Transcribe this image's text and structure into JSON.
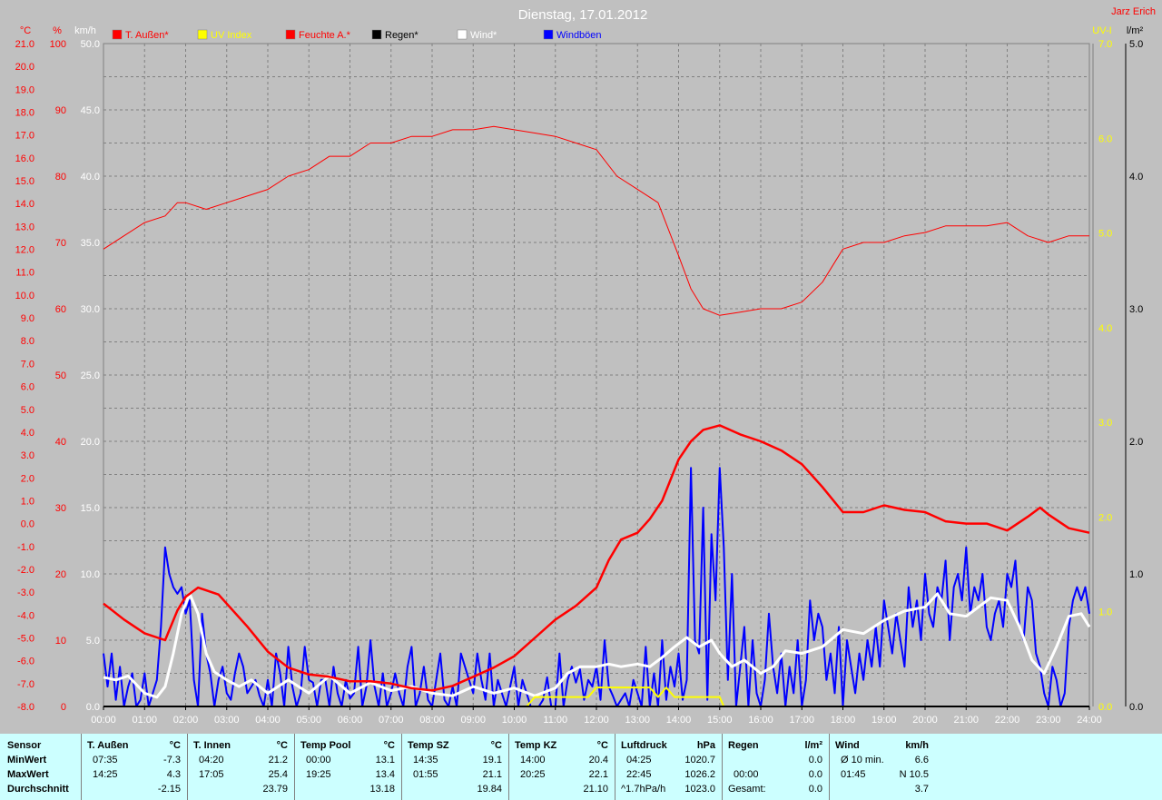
{
  "title": "Dienstag, 17.01.2012",
  "author": "Jarz Erich",
  "colors": {
    "temp": "#ff0000",
    "uv": "#ffff00",
    "humidity": "#ff0000",
    "rain": "#000000",
    "wind": "#ffffff",
    "gust": "#0000ff",
    "plot_bg": "#c0c0c0",
    "grid": "#808080",
    "table_bg": "#ccffff"
  },
  "legend": [
    {
      "label": "T. Außen*",
      "color": "#ff0000"
    },
    {
      "label": "UV Index",
      "color": "#ffff00"
    },
    {
      "label": "Feuchte A.*",
      "color": "#ff0000"
    },
    {
      "label": "Regen*",
      "color": "#000000"
    },
    {
      "label": "Wind*",
      "color": "#ffffff"
    },
    {
      "label": "Windböen",
      "color": "#0000ff"
    }
  ],
  "axis_units": {
    "temp": "°C",
    "humidity": "%",
    "wind": "km/h",
    "uv": "UV-I",
    "rain": "l/m²"
  },
  "chart_data": {
    "type": "line",
    "title": "Dienstag, 17.01.2012",
    "x_ticks": [
      "00:00",
      "01:00",
      "02:00",
      "03:00",
      "04:00",
      "05:00",
      "06:00",
      "07:00",
      "08:00",
      "09:00",
      "10:00",
      "11:00",
      "12:00",
      "13:00",
      "14:00",
      "15:00",
      "16:00",
      "17:00",
      "18:00",
      "19:00",
      "20:00",
      "21:00",
      "22:00",
      "23:00",
      "24:00"
    ],
    "x_range": [
      0,
      24
    ],
    "axes": {
      "temp": {
        "range": [
          -8,
          21
        ],
        "ticks": [
          "-8.0",
          "-7.0",
          "-6.0",
          "-5.0",
          "-4.0",
          "-3.0",
          "-2.0",
          "-1.0",
          "0.0",
          "1.0",
          "2.0",
          "3.0",
          "4.0",
          "5.0",
          "6.0",
          "7.0",
          "8.0",
          "9.0",
          "10.0",
          "11.0",
          "12.0",
          "13.0",
          "14.0",
          "15.0",
          "16.0",
          "17.0",
          "18.0",
          "19.0",
          "20.0",
          "21.0"
        ]
      },
      "humidity": {
        "range": [
          0,
          100
        ],
        "ticks": [
          "0",
          "10",
          "20",
          "30",
          "40",
          "50",
          "60",
          "70",
          "80",
          "90",
          "100"
        ]
      },
      "wind": {
        "range": [
          0,
          50
        ],
        "ticks": [
          "0.0",
          "5.0",
          "10.0",
          "15.0",
          "20.0",
          "25.0",
          "30.0",
          "35.0",
          "40.0",
          "45.0",
          "50.0"
        ]
      },
      "uv": {
        "range": [
          0,
          7
        ],
        "ticks": [
          "0.0",
          "1.0",
          "2.0",
          "3.0",
          "4.0",
          "5.0",
          "6.0",
          "7.0"
        ]
      },
      "rain": {
        "range": [
          0,
          5
        ],
        "ticks": [
          "0.0",
          "1.0",
          "2.0",
          "3.0",
          "4.0",
          "5.0"
        ]
      }
    },
    "series": [
      {
        "name": "T. Außen*",
        "axis": "temp",
        "x": [
          0,
          0.5,
          1,
          1.5,
          1.8,
          2,
          2.3,
          2.8,
          3.5,
          4,
          4.5,
          5,
          5.5,
          6,
          6.5,
          7,
          7.5,
          8,
          8.5,
          9,
          9.5,
          10,
          10.5,
          11,
          11.5,
          12,
          12.3,
          12.6,
          13,
          13.3,
          13.6,
          14,
          14.3,
          14.6,
          15,
          15.5,
          16,
          16.5,
          17,
          17.5,
          18,
          18.5,
          19,
          19.5,
          20,
          20.5,
          21,
          21.5,
          22,
          22.5,
          22.8,
          23,
          23.5,
          24
        ],
        "y": [
          -3.5,
          -4.2,
          -4.8,
          -5.1,
          -3.8,
          -3.2,
          -2.8,
          -3.1,
          -4.5,
          -5.6,
          -6.3,
          -6.6,
          -6.7,
          -6.9,
          -6.9,
          -7.0,
          -7.2,
          -7.3,
          -7.1,
          -6.7,
          -6.3,
          -5.8,
          -5.0,
          -4.2,
          -3.6,
          -2.8,
          -1.6,
          -0.7,
          -0.4,
          0.2,
          1.0,
          2.8,
          3.6,
          4.1,
          4.3,
          3.9,
          3.6,
          3.2,
          2.6,
          1.6,
          0.5,
          0.5,
          0.8,
          0.6,
          0.5,
          0.1,
          0.0,
          0.0,
          -0.3,
          0.3,
          0.7,
          0.4,
          -0.2,
          -0.4
        ]
      },
      {
        "name": "Feuchte A.*",
        "axis": "humidity",
        "x": [
          0,
          0.5,
          1,
          1.5,
          1.8,
          2,
          2.5,
          3,
          3.5,
          4,
          4.5,
          5,
          5.5,
          6,
          6.5,
          7,
          7.5,
          8,
          8.5,
          9,
          9.5,
          10,
          10.5,
          11,
          11.5,
          12,
          12.5,
          13,
          13.5,
          14,
          14.3,
          14.6,
          15,
          15.5,
          16,
          16.5,
          17,
          17.5,
          18,
          18.5,
          19,
          19.5,
          20,
          20.5,
          21,
          21.5,
          22,
          22.5,
          23,
          23.5,
          24
        ],
        "y": [
          69,
          71,
          73,
          74,
          76,
          76,
          75,
          76,
          77,
          78,
          80,
          81,
          83,
          83,
          85,
          85,
          86,
          86,
          87,
          87,
          87.5,
          87,
          86.5,
          86,
          85,
          84,
          80,
          78,
          76,
          68,
          63,
          60,
          59,
          59.5,
          60,
          60,
          61,
          64,
          69,
          70,
          70,
          71,
          71.5,
          72.5,
          72.5,
          72.5,
          73,
          71,
          70,
          71,
          71
        ]
      },
      {
        "name": "Wind*",
        "axis": "wind",
        "x": [
          0,
          0.3,
          0.6,
          1,
          1.3,
          1.5,
          1.7,
          1.9,
          2.1,
          2.3,
          2.5,
          2.7,
          3,
          3.3,
          3.6,
          4,
          4.5,
          5,
          5.5,
          6,
          6.5,
          7,
          7.5,
          8,
          8.5,
          9,
          9.5,
          10,
          10.5,
          11,
          11.3,
          11.6,
          12,
          12.3,
          12.6,
          13,
          13.3,
          13.6,
          13.9,
          14.2,
          14.5,
          14.8,
          15,
          15.3,
          15.6,
          16,
          16.3,
          16.6,
          17,
          17.5,
          18,
          18.5,
          19,
          19.5,
          20,
          20.3,
          20.6,
          21,
          21.3,
          21.6,
          22,
          22.3,
          22.6,
          22.9,
          23.2,
          23.5,
          23.8,
          24
        ],
        "y": [
          2.2,
          2.0,
          2.3,
          1.0,
          0.7,
          1.5,
          4.0,
          7.0,
          8.5,
          7.0,
          4.0,
          2.6,
          2.0,
          1.5,
          2.0,
          1.0,
          2.0,
          1.0,
          2.3,
          1.0,
          1.8,
          1.2,
          1.5,
          1.0,
          0.8,
          1.5,
          1.0,
          1.4,
          0.8,
          1.4,
          2.5,
          3.0,
          3.0,
          3.2,
          3.0,
          3.2,
          3.0,
          3.7,
          4.5,
          5.2,
          4.5,
          5.0,
          4.0,
          3.0,
          3.5,
          2.5,
          3.0,
          4.2,
          4.0,
          4.5,
          5.8,
          5.5,
          6.5,
          7.2,
          7.5,
          8.5,
          7.0,
          6.8,
          7.5,
          8.2,
          8.0,
          6.0,
          3.5,
          2.5,
          4.5,
          6.8,
          7.0,
          6.0
        ]
      },
      {
        "name": "Windböen",
        "axis": "wind",
        "x": [
          0,
          0.1,
          0.2,
          0.3,
          0.4,
          0.5,
          0.6,
          0.7,
          0.8,
          0.9,
          1.0,
          1.1,
          1.2,
          1.3,
          1.4,
          1.5,
          1.6,
          1.7,
          1.8,
          1.9,
          2.0,
          2.1,
          2.2,
          2.3,
          2.4,
          2.5,
          2.6,
          2.7,
          2.8,
          2.9,
          3.0,
          3.1,
          3.2,
          3.3,
          3.4,
          3.5,
          3.6,
          3.7,
          3.8,
          3.9,
          4.0,
          4.1,
          4.2,
          4.3,
          4.4,
          4.5,
          4.6,
          4.7,
          4.8,
          4.9,
          5.0,
          5.1,
          5.2,
          5.3,
          5.4,
          5.5,
          5.6,
          5.7,
          5.8,
          5.9,
          6.0,
          6.1,
          6.2,
          6.3,
          6.4,
          6.5,
          6.6,
          6.7,
          6.8,
          6.9,
          7.0,
          7.1,
          7.2,
          7.3,
          7.4,
          7.5,
          7.6,
          7.7,
          7.8,
          7.9,
          8.0,
          8.1,
          8.2,
          8.3,
          8.4,
          8.5,
          8.6,
          8.7,
          8.8,
          8.9,
          9.0,
          9.1,
          9.2,
          9.3,
          9.4,
          9.5,
          9.6,
          9.7,
          9.8,
          9.9,
          10.0,
          10.1,
          10.2,
          10.3,
          10.4,
          10.5,
          10.6,
          10.7,
          10.8,
          10.9,
          11.0,
          11.1,
          11.2,
          11.3,
          11.4,
          11.5,
          11.6,
          11.7,
          11.8,
          11.9,
          12.0,
          12.1,
          12.2,
          12.3,
          12.4,
          12.5,
          12.6,
          12.7,
          12.8,
          12.9,
          13.0,
          13.1,
          13.2,
          13.3,
          13.4,
          13.5,
          13.6,
          13.7,
          13.8,
          13.9,
          14.0,
          14.1,
          14.2,
          14.3,
          14.4,
          14.5,
          14.6,
          14.7,
          14.8,
          14.9,
          15.0,
          15.1,
          15.2,
          15.3,
          15.4,
          15.5,
          15.6,
          15.7,
          15.8,
          15.9,
          16.0,
          16.1,
          16.2,
          16.3,
          16.4,
          16.5,
          16.6,
          16.7,
          16.8,
          16.9,
          17.0,
          17.1,
          17.2,
          17.3,
          17.4,
          17.5,
          17.6,
          17.7,
          17.8,
          17.9,
          18.0,
          18.1,
          18.2,
          18.3,
          18.4,
          18.5,
          18.6,
          18.7,
          18.8,
          18.9,
          19.0,
          19.1,
          19.2,
          19.3,
          19.4,
          19.5,
          19.6,
          19.7,
          19.8,
          19.9,
          20.0,
          20.1,
          20.2,
          20.3,
          20.4,
          20.5,
          20.6,
          20.7,
          20.8,
          20.9,
          21.0,
          21.1,
          21.2,
          21.3,
          21.4,
          21.5,
          21.6,
          21.7,
          21.8,
          21.9,
          22.0,
          22.1,
          22.2,
          22.3,
          22.4,
          22.5,
          22.6,
          22.7,
          22.8,
          22.9,
          23.0,
          23.1,
          23.2,
          23.3,
          23.4,
          23.5,
          23.6,
          23.7,
          23.8,
          23.9,
          24.0
        ],
        "y": [
          4,
          1.5,
          4,
          0.5,
          3,
          0,
          1.5,
          2.5,
          0,
          0.5,
          2.5,
          0,
          1,
          2,
          6,
          12,
          10,
          9,
          8.5,
          9,
          7,
          8,
          2,
          0,
          7,
          4,
          2.5,
          0,
          2,
          3,
          1,
          0.5,
          2.5,
          4,
          3,
          1,
          1.5,
          2,
          0.8,
          0,
          2,
          0,
          4,
          2.5,
          0,
          4.5,
          1.5,
          0,
          1,
          4.5,
          2,
          1.8,
          0,
          2,
          2,
          0,
          3,
          1,
          0,
          2,
          0.6,
          1,
          4.5,
          0,
          1.5,
          5,
          1.5,
          0,
          2.5,
          0,
          1,
          2.5,
          1,
          0,
          3,
          4.5,
          0,
          1,
          3,
          0.5,
          0,
          2,
          4,
          0.5,
          0,
          1.5,
          0,
          4,
          3,
          2,
          1,
          4,
          2,
          0.5,
          4,
          0,
          2,
          1,
          0,
          1.5,
          3,
          0,
          2,
          1,
          0,
          0,
          0,
          0.5,
          2.2,
          0,
          0,
          4,
          0,
          2,
          3,
          1.8,
          2.8,
          0.5,
          2,
          1.5,
          3,
          0.5,
          5,
          1.5,
          0.8,
          0,
          0.5,
          1,
          0,
          2,
          1,
          0,
          4.5,
          0,
          2.5,
          0,
          5,
          0.5,
          3,
          1.5,
          4,
          0.5,
          2,
          18,
          5,
          4,
          15,
          0.5,
          13,
          8,
          18,
          12,
          2,
          10,
          0,
          3,
          6,
          0,
          5,
          1,
          0,
          2,
          7,
          3,
          1,
          4,
          0,
          3,
          1,
          5,
          0,
          2,
          8,
          5,
          7,
          6,
          2,
          4,
          1,
          6,
          0,
          5,
          3,
          1,
          4,
          2,
          5,
          3,
          6,
          3,
          8,
          6,
          4,
          7,
          5,
          3,
          9,
          6,
          8,
          5,
          10,
          7,
          6,
          9,
          8,
          11,
          5,
          9,
          10,
          8,
          12,
          7,
          9,
          8,
          10,
          6,
          5,
          7,
          8,
          6,
          10,
          9,
          11,
          6,
          5,
          9,
          8,
          4,
          3,
          1,
          0,
          3,
          2,
          0,
          1,
          6,
          8,
          9,
          8,
          9,
          7
        ]
      },
      {
        "name": "UV Index",
        "axis": "uv",
        "x": [
          0,
          10.3,
          10.5,
          11,
          11.5,
          11.8,
          12,
          12.2,
          12.5,
          13,
          13.3,
          13.5,
          13.7,
          13.9,
          14.1,
          14.3,
          14.5,
          14.8,
          15,
          15.1,
          24
        ],
        "y": [
          0,
          0,
          0.1,
          0.1,
          0.1,
          0.1,
          0.2,
          0.2,
          0.2,
          0.2,
          0.2,
          0.1,
          0.2,
          0.1,
          0.1,
          0.1,
          0.1,
          0.1,
          0.1,
          0,
          0
        ]
      },
      {
        "name": "Regen*",
        "axis": "rain",
        "x": [
          0,
          24
        ],
        "y": [
          0,
          0
        ]
      }
    ]
  },
  "stats": {
    "sensor": {
      "header": "Sensor",
      "min": "MinWert",
      "max": "MaxWert",
      "avg": "Durchschnitt"
    },
    "columns": [
      {
        "title": "T. Außen",
        "unit": "°C",
        "min_time": "07:35",
        "min_val": "-7.3",
        "max_time": "14:25",
        "max_val": "4.3",
        "avg_label": "",
        "avg_val": "-2.15"
      },
      {
        "title": "T. Innen",
        "unit": "°C",
        "min_time": "04:20",
        "min_val": "21.2",
        "max_time": "17:05",
        "max_val": "25.4",
        "avg_label": "",
        "avg_val": "23.79"
      },
      {
        "title": "Temp Pool",
        "unit": "°C",
        "min_time": "00:00",
        "min_val": "13.1",
        "max_time": "19:25",
        "max_val": "13.4",
        "avg_label": "",
        "avg_val": "13.18"
      },
      {
        "title": "Temp SZ",
        "unit": "°C",
        "min_time": "14:35",
        "min_val": "19.1",
        "max_time": "01:55",
        "max_val": "21.1",
        "avg_label": "",
        "avg_val": "19.84"
      },
      {
        "title": "Temp KZ",
        "unit": "°C",
        "min_time": "14:00",
        "min_val": "20.4",
        "max_time": "20:25",
        "max_val": "22.1",
        "avg_label": "",
        "avg_val": "21.10"
      },
      {
        "title": "Luftdruck",
        "unit": "hPa",
        "min_time": "04:25",
        "min_val": "1020.7",
        "max_time": "22:45",
        "max_val": "1026.2",
        "avg_label": "^1.7hPa/h",
        "avg_val": "1023.0"
      },
      {
        "title": "Regen",
        "unit": "l/m²",
        "min_time": "",
        "min_val": "",
        "max_time": "00:00",
        "max_val": "0.0",
        "avg_label": "Gesamt:",
        "avg_val": "0.0",
        "row1_val": "0.0"
      },
      {
        "title": "Wind",
        "unit": "km/h",
        "min_time": "Ø 10 min.",
        "min_val": "6.6",
        "max_time": "01:45",
        "max_val": "N 10.5",
        "avg_label": "",
        "avg_val": "3.7"
      }
    ]
  }
}
